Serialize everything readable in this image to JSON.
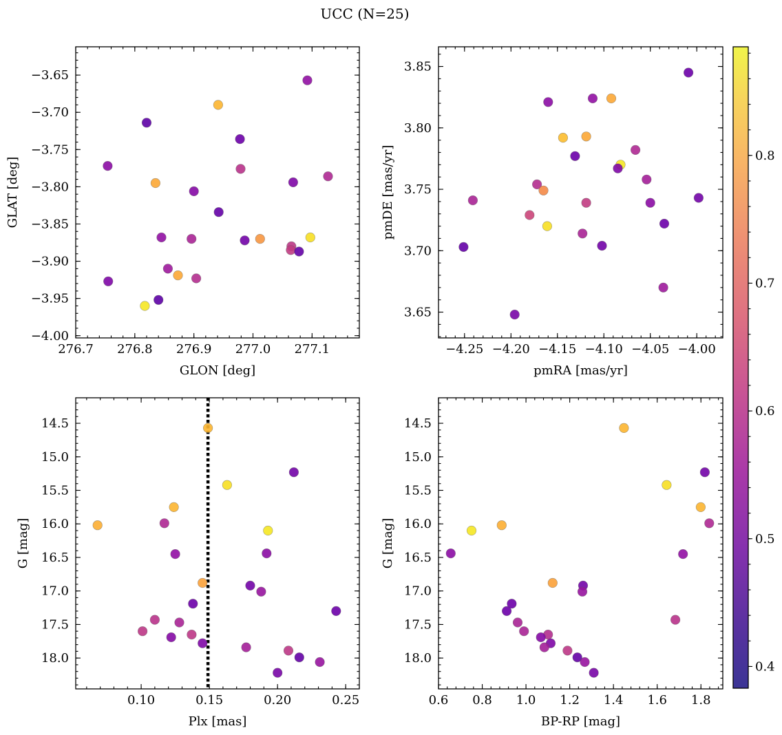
{
  "title": "UCC (N=25)",
  "chart_data": [
    {
      "type": "scatter",
      "xlabel": "GLON [deg]",
      "ylabel": "GLAT [deg]",
      "xlim": [
        276.7,
        277.18
      ],
      "ylim": [
        -4.003,
        -3.612
      ],
      "inverted_y": false,
      "xticks": [
        276.7,
        276.8,
        276.9,
        277.0,
        277.1
      ],
      "xtick_labels": [
        "276.7",
        "276.8",
        "276.9",
        "277.0",
        "277.1"
      ],
      "yticks": [
        -4.0,
        -3.95,
        -3.9,
        -3.85,
        -3.8,
        -3.75,
        -3.7,
        -3.65
      ],
      "ytick_labels": [
        "−4.00",
        "−3.95",
        "−3.90",
        "−3.85",
        "−3.80",
        "−3.75",
        "−3.70",
        "−3.65"
      ],
      "points": [
        {
          "x": 277.092,
          "y": -3.657,
          "c": 0.48
        },
        {
          "x": 276.941,
          "y": -3.69,
          "c": 0.79
        },
        {
          "x": 276.82,
          "y": -3.714,
          "c": 0.4
        },
        {
          "x": 276.978,
          "y": -3.736,
          "c": 0.42
        },
        {
          "x": 276.754,
          "y": -3.772,
          "c": 0.47
        },
        {
          "x": 276.979,
          "y": -3.776,
          "c": 0.55
        },
        {
          "x": 277.127,
          "y": -3.786,
          "c": 0.53
        },
        {
          "x": 276.835,
          "y": -3.795,
          "c": 0.77
        },
        {
          "x": 277.068,
          "y": -3.794,
          "c": 0.45
        },
        {
          "x": 276.9,
          "y": -3.806,
          "c": 0.46
        },
        {
          "x": 276.942,
          "y": -3.834,
          "c": 0.41
        },
        {
          "x": 276.845,
          "y": -3.868,
          "c": 0.48
        },
        {
          "x": 276.896,
          "y": -3.87,
          "c": 0.52
        },
        {
          "x": 276.986,
          "y": -3.872,
          "c": 0.43
        },
        {
          "x": 277.012,
          "y": -3.87,
          "c": 0.74
        },
        {
          "x": 277.097,
          "y": -3.868,
          "c": 0.85
        },
        {
          "x": 277.065,
          "y": -3.88,
          "c": 0.56
        },
        {
          "x": 277.064,
          "y": -3.885,
          "c": 0.57
        },
        {
          "x": 277.078,
          "y": -3.887,
          "c": 0.41
        },
        {
          "x": 276.856,
          "y": -3.91,
          "c": 0.5
        },
        {
          "x": 276.873,
          "y": -3.919,
          "c": 0.77
        },
        {
          "x": 276.904,
          "y": -3.923,
          "c": 0.54
        },
        {
          "x": 276.755,
          "y": -3.927,
          "c": 0.45
        },
        {
          "x": 276.84,
          "y": -3.952,
          "c": 0.4
        },
        {
          "x": 276.817,
          "y": -3.96,
          "c": 0.86
        }
      ]
    },
    {
      "type": "scatter",
      "xlabel": "pmRA [mas/yr]",
      "ylabel": "pmDE [mas/yr]",
      "xlim": [
        -4.278,
        -3.972
      ],
      "ylim": [
        3.629,
        3.866
      ],
      "inverted_y": false,
      "xticks": [
        -4.25,
        -4.2,
        -4.15,
        -4.1,
        -4.05,
        -4.0
      ],
      "xtick_labels": [
        "−4.25",
        "−4.20",
        "−4.15",
        "−4.10",
        "−4.05",
        "−4.00"
      ],
      "yticks": [
        3.65,
        3.7,
        3.75,
        3.8,
        3.85
      ],
      "ytick_labels": [
        "3.65",
        "3.70",
        "3.75",
        "3.80",
        "3.85"
      ],
      "points": [
        {
          "x": -4.009,
          "y": 3.845,
          "c": 0.42
        },
        {
          "x": -4.112,
          "y": 3.824,
          "c": 0.48
        },
        {
          "x": -4.092,
          "y": 3.824,
          "c": 0.77
        },
        {
          "x": -4.16,
          "y": 3.821,
          "c": 0.47
        },
        {
          "x": -4.144,
          "y": 3.792,
          "c": 0.8
        },
        {
          "x": -4.119,
          "y": 3.793,
          "c": 0.77
        },
        {
          "x": -4.066,
          "y": 3.782,
          "c": 0.53
        },
        {
          "x": -4.131,
          "y": 3.777,
          "c": 0.42
        },
        {
          "x": -4.082,
          "y": 3.77,
          "c": 0.86
        },
        {
          "x": -4.085,
          "y": 3.767,
          "c": 0.45
        },
        {
          "x": -4.172,
          "y": 3.754,
          "c": 0.54
        },
        {
          "x": -4.054,
          "y": 3.758,
          "c": 0.51
        },
        {
          "x": -4.165,
          "y": 3.749,
          "c": 0.72
        },
        {
          "x": -3.998,
          "y": 3.743,
          "c": 0.43
        },
        {
          "x": -4.241,
          "y": 3.741,
          "c": 0.52
        },
        {
          "x": -4.05,
          "y": 3.739,
          "c": 0.47
        },
        {
          "x": -4.119,
          "y": 3.739,
          "c": 0.57
        },
        {
          "x": -4.18,
          "y": 3.729,
          "c": 0.59
        },
        {
          "x": -4.161,
          "y": 3.72,
          "c": 0.85
        },
        {
          "x": -4.035,
          "y": 3.722,
          "c": 0.42
        },
        {
          "x": -4.123,
          "y": 3.714,
          "c": 0.52
        },
        {
          "x": -4.102,
          "y": 3.704,
          "c": 0.43
        },
        {
          "x": -4.251,
          "y": 3.703,
          "c": 0.41
        },
        {
          "x": -4.036,
          "y": 3.67,
          "c": 0.5
        },
        {
          "x": -4.196,
          "y": 3.648,
          "c": 0.44
        }
      ]
    },
    {
      "type": "scatter",
      "xlabel": "Plx [mas]",
      "ylabel": "G [mag]",
      "xlim": [
        0.052,
        0.26
      ],
      "ylim": [
        18.46,
        14.12
      ],
      "inverted_y": true,
      "vline": {
        "x": 0.149,
        "style": "dotted"
      },
      "xticks": [
        0.1,
        0.15,
        0.2,
        0.25
      ],
      "xtick_labels": [
        "0.10",
        "0.15",
        "0.20",
        "0.25"
      ],
      "yticks": [
        14.5,
        15.0,
        15.5,
        16.0,
        16.5,
        17.0,
        17.5,
        18.0
      ],
      "ytick_labels": [
        "14.5",
        "15.0",
        "15.5",
        "16.0",
        "16.5",
        "17.0",
        "17.5",
        "18.0"
      ],
      "points": [
        {
          "x": 0.149,
          "y": 14.57,
          "c": 0.79
        },
        {
          "x": 0.212,
          "y": 15.23,
          "c": 0.43
        },
        {
          "x": 0.163,
          "y": 15.42,
          "c": 0.85
        },
        {
          "x": 0.124,
          "y": 15.75,
          "c": 0.79
        },
        {
          "x": 0.068,
          "y": 16.02,
          "c": 0.78
        },
        {
          "x": 0.117,
          "y": 15.99,
          "c": 0.53
        },
        {
          "x": 0.193,
          "y": 16.1,
          "c": 0.86
        },
        {
          "x": 0.125,
          "y": 16.45,
          "c": 0.48
        },
        {
          "x": 0.192,
          "y": 16.44,
          "c": 0.47
        },
        {
          "x": 0.145,
          "y": 16.88,
          "c": 0.76
        },
        {
          "x": 0.18,
          "y": 16.92,
          "c": 0.43
        },
        {
          "x": 0.188,
          "y": 17.01,
          "c": 0.49
        },
        {
          "x": 0.138,
          "y": 17.19,
          "c": 0.42
        },
        {
          "x": 0.243,
          "y": 17.3,
          "c": 0.42
        },
        {
          "x": 0.11,
          "y": 17.43,
          "c": 0.55
        },
        {
          "x": 0.128,
          "y": 17.47,
          "c": 0.52
        },
        {
          "x": 0.101,
          "y": 17.6,
          "c": 0.56
        },
        {
          "x": 0.137,
          "y": 17.65,
          "c": 0.56
        },
        {
          "x": 0.122,
          "y": 17.69,
          "c": 0.46
        },
        {
          "x": 0.145,
          "y": 17.78,
          "c": 0.45
        },
        {
          "x": 0.177,
          "y": 17.84,
          "c": 0.51
        },
        {
          "x": 0.208,
          "y": 17.89,
          "c": 0.56
        },
        {
          "x": 0.216,
          "y": 17.99,
          "c": 0.41
        },
        {
          "x": 0.231,
          "y": 18.06,
          "c": 0.49
        },
        {
          "x": 0.2,
          "y": 18.22,
          "c": 0.44
        }
      ]
    },
    {
      "type": "scatter",
      "xlabel": "BP-RP [mag]",
      "ylabel": "G [mag]",
      "xlim": [
        0.6,
        1.9
      ],
      "ylim": [
        18.46,
        14.12
      ],
      "inverted_y": true,
      "xticks": [
        0.6,
        0.8,
        1.0,
        1.2,
        1.4,
        1.6,
        1.8
      ],
      "xtick_labels": [
        "0.6",
        "0.8",
        "1.0",
        "1.2",
        "1.4",
        "1.6",
        "1.8"
      ],
      "yticks": [
        14.5,
        15.0,
        15.5,
        16.0,
        16.5,
        17.0,
        17.5,
        18.0
      ],
      "ytick_labels": [
        "14.5",
        "15.0",
        "15.5",
        "16.0",
        "16.5",
        "17.0",
        "17.5",
        "18.0"
      ],
      "points": [
        {
          "x": 1.448,
          "y": 14.57,
          "c": 0.79
        },
        {
          "x": 1.818,
          "y": 15.23,
          "c": 0.43
        },
        {
          "x": 1.643,
          "y": 15.42,
          "c": 0.85
        },
        {
          "x": 1.799,
          "y": 15.75,
          "c": 0.79
        },
        {
          "x": 1.838,
          "y": 15.99,
          "c": 0.53
        },
        {
          "x": 0.889,
          "y": 16.02,
          "c": 0.78
        },
        {
          "x": 0.751,
          "y": 16.1,
          "c": 0.86
        },
        {
          "x": 0.656,
          "y": 16.44,
          "c": 0.47
        },
        {
          "x": 1.718,
          "y": 16.45,
          "c": 0.48
        },
        {
          "x": 1.122,
          "y": 16.88,
          "c": 0.76
        },
        {
          "x": 1.261,
          "y": 16.92,
          "c": 0.43
        },
        {
          "x": 1.258,
          "y": 17.01,
          "c": 0.49
        },
        {
          "x": 0.935,
          "y": 17.19,
          "c": 0.42
        },
        {
          "x": 0.912,
          "y": 17.3,
          "c": 0.42
        },
        {
          "x": 1.683,
          "y": 17.43,
          "c": 0.55
        },
        {
          "x": 0.962,
          "y": 17.47,
          "c": 0.52
        },
        {
          "x": 0.991,
          "y": 17.6,
          "c": 0.52
        },
        {
          "x": 1.101,
          "y": 17.65,
          "c": 0.54
        },
        {
          "x": 1.068,
          "y": 17.69,
          "c": 0.46
        },
        {
          "x": 1.113,
          "y": 17.78,
          "c": 0.45
        },
        {
          "x": 1.084,
          "y": 17.84,
          "c": 0.51
        },
        {
          "x": 1.19,
          "y": 17.89,
          "c": 0.56
        },
        {
          "x": 1.235,
          "y": 17.99,
          "c": 0.41
        },
        {
          "x": 1.269,
          "y": 18.06,
          "c": 0.49
        },
        {
          "x": 1.31,
          "y": 18.22,
          "c": 0.44
        }
      ]
    }
  ],
  "colorbar": {
    "cmap": "plasma",
    "range": [
      0.383,
      0.885
    ],
    "ticks": [
      0.4,
      0.5,
      0.6,
      0.7,
      0.8
    ],
    "tick_labels": [
      "0.4",
      "0.5",
      "0.6",
      "0.7",
      "0.8"
    ]
  }
}
